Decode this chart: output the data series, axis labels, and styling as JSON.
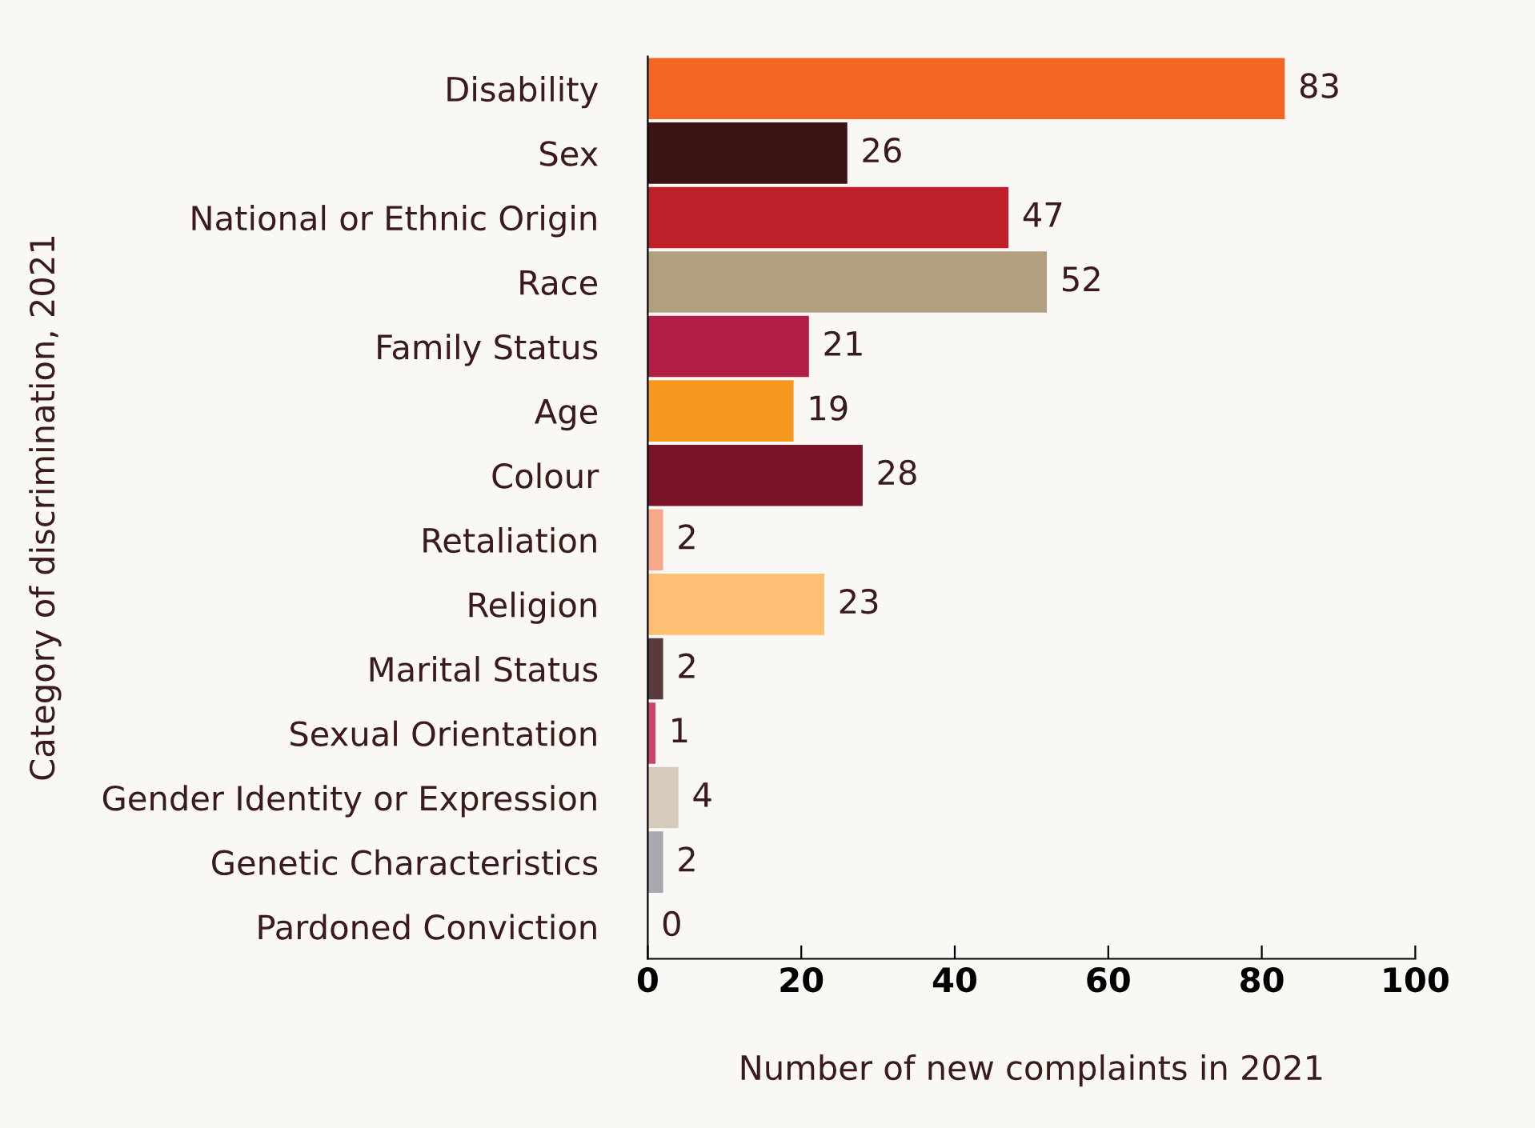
{
  "chart_data": {
    "type": "bar",
    "orientation": "horizontal",
    "xlabel": "Number of new complaints in 2021",
    "ylabel": "Category of discrimination, 2021",
    "categories": [
      "Disability",
      "Sex",
      "National or Ethnic Origin",
      "Race",
      "Family Status",
      "Age",
      "Colour",
      "Retaliation",
      "Religion",
      "Marital Status",
      "Sexual Orientation",
      "Gender Identity or Expression",
      "Genetic Characteristics",
      "Pardoned Conviction"
    ],
    "values": [
      83,
      26,
      47,
      52,
      21,
      19,
      28,
      2,
      23,
      2,
      1,
      4,
      2,
      0
    ],
    "colors": [
      "#f26522",
      "#3c1414",
      "#c0202a",
      "#b0a080",
      "#b01e45",
      "#f7991f",
      "#7a1228",
      "#f7a88a",
      "#fdbf73",
      "#5a3a3a",
      "#d04070",
      "#d5cabb",
      "#a8a8b0",
      "#cccccc"
    ],
    "xlim": [
      0,
      100
    ],
    "xticks": [
      0,
      20,
      40,
      60,
      80,
      100
    ],
    "data_labels": true,
    "grid": false,
    "legend": false
  }
}
